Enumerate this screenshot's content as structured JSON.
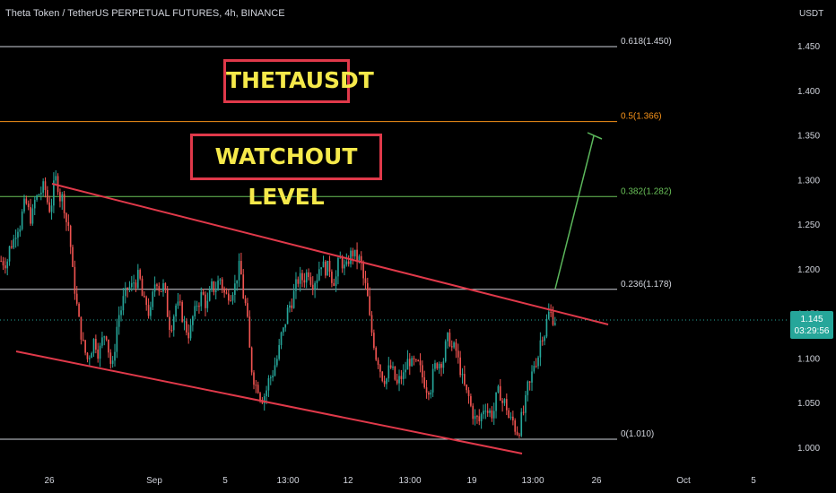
{
  "header": {
    "title": "Theta Token / TetherUS PERPETUAL FUTURES, 4h, BINANCE",
    "currency": "USDT"
  },
  "price_tag": {
    "price": "1.145",
    "timer": "03:29:56",
    "color": "#26a69a"
  },
  "annotations": {
    "symbol_box": "THETAUSDT",
    "watch_box": "WATCHOUT LEVEL",
    "box_border_color": "#e0394a",
    "box_text_color": "#f5e94a"
  },
  "chart_data": {
    "type": "line",
    "title": "Theta Token / TetherUS PERPETUAL FUTURES, 4h, BINANCE",
    "ylabel": "USDT",
    "ylim": [
      0.98,
      1.51
    ],
    "y_ticks": [
      "1.000",
      "1.050",
      "1.100",
      "1.150",
      "1.200",
      "1.250",
      "1.300",
      "1.350",
      "1.400",
      "1.450"
    ],
    "x_ticks": [
      "26",
      "Sep",
      "5",
      "13:00",
      "12",
      "13:00",
      "19",
      "13:00",
      "26",
      "Oct",
      "5"
    ],
    "fib_levels": [
      {
        "label": "0.618(1.450)",
        "value": 1.45,
        "color": "#d1d4dc"
      },
      {
        "label": "0.5(1.366)",
        "value": 1.366,
        "color": "#f7931a"
      },
      {
        "label": "0.382(1.282)",
        "value": 1.282,
        "color": "#6ac259"
      },
      {
        "label": "0.236(1.178)",
        "value": 1.178,
        "color": "#d1d4dc"
      },
      {
        "label": "0(1.010)",
        "value": 1.01,
        "color": "#d1d4dc"
      }
    ],
    "price_series": [
      1.21,
      1.23,
      1.25,
      1.27,
      1.26,
      1.28,
      1.29,
      1.27,
      1.3,
      1.28,
      1.25,
      1.18,
      1.13,
      1.1,
      1.12,
      1.11,
      1.13,
      1.09,
      1.15,
      1.17,
      1.18,
      1.19,
      1.16,
      1.15,
      1.19,
      1.18,
      1.14,
      1.16,
      1.15,
      1.13,
      1.15,
      1.17,
      1.16,
      1.18,
      1.19,
      1.17,
      1.18,
      1.2,
      1.16,
      1.09,
      1.07,
      1.06,
      1.08,
      1.1,
      1.13,
      1.16,
      1.18,
      1.19,
      1.2,
      1.19,
      1.21,
      1.2,
      1.19,
      1.21,
      1.2,
      1.22,
      1.21,
      1.18,
      1.13,
      1.1,
      1.08,
      1.09,
      1.07,
      1.08,
      1.1,
      1.09,
      1.08,
      1.07,
      1.09,
      1.1,
      1.12,
      1.11,
      1.09,
      1.06,
      1.04,
      1.03,
      1.05,
      1.04,
      1.06,
      1.05,
      1.03,
      1.02,
      1.04,
      1.07,
      1.1,
      1.13,
      1.15,
      1.145
    ],
    "trend_upper": [
      [
        1.295,
        0.0
      ],
      [
        1.142,
        1.0
      ]
    ],
    "trend_lower": [
      [
        1.105,
        0.0
      ],
      [
        0.995,
        1.0
      ]
    ],
    "projection_target": 1.35,
    "colors": {
      "up": "#26a69a",
      "down": "#ef5350",
      "trend": "#e0394a",
      "projection": "#5cb85c"
    }
  }
}
